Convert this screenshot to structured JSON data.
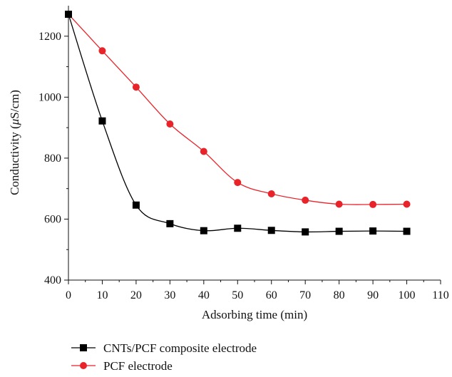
{
  "chart_data": {
    "type": "line",
    "xlabel": "Adsorbing time (min)",
    "ylabel_prefix": "Conductivity (",
    "ylabel_mu": "μ",
    "ylabel_suffix": "S/cm)",
    "xlim": [
      0,
      110
    ],
    "ylim": [
      400,
      1300
    ],
    "xticks": [
      0,
      10,
      20,
      30,
      40,
      50,
      60,
      70,
      80,
      90,
      100,
      110
    ],
    "yticks": [
      400,
      600,
      800,
      1000,
      1200
    ],
    "grid": false,
    "legend_position": "bottom-left",
    "x": [
      0,
      10,
      20,
      30,
      40,
      50,
      60,
      70,
      80,
      90,
      100
    ],
    "series": [
      {
        "name": "CNTs/PCF composite electrode",
        "color": "#000000",
        "marker": "square",
        "values": [
          1272,
          922,
          646,
          585,
          562,
          570,
          563,
          558,
          560,
          561,
          560
        ]
      },
      {
        "name": "PCF electrode",
        "color": "#e8232a",
        "marker": "circle",
        "values": [
          1272,
          1152,
          1033,
          912,
          822,
          720,
          683,
          662,
          649,
          648,
          649
        ]
      }
    ]
  }
}
